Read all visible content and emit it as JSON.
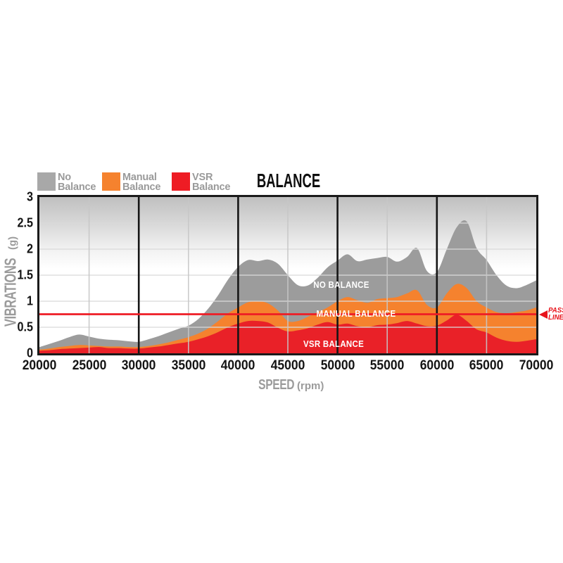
{
  "title": "BALANCE",
  "legend": {
    "items": [
      {
        "line1": "No",
        "line2": "Balance",
        "color": "#a8a8a8"
      },
      {
        "line1": "Manual",
        "line2": "Balance",
        "color": "#f5822e"
      },
      {
        "line1": "VSR",
        "line2": "Balance",
        "color": "#ee1c24"
      }
    ]
  },
  "y_axis": {
    "title": "VIBRATIONS",
    "unit": "(g)",
    "ticks": [
      "3",
      "2.5",
      "2",
      "1.5",
      "1",
      "0.5",
      "0"
    ]
  },
  "x_axis": {
    "title": "SPEED",
    "unit": "(rpm)",
    "ticks": [
      "20000",
      "25000",
      "30000",
      "35000",
      "40000",
      "45000",
      "50000",
      "55000",
      "60000",
      "65000",
      "70000"
    ]
  },
  "pass_line": {
    "value": 0.75,
    "label_line1": "PASS",
    "label_line2": "LINE",
    "color": "#ee1c25"
  },
  "area_labels": {
    "no_balance": "NO BALANCE",
    "manual_balance": "MANUAL BALANCE",
    "vsr_balance": "VSR BALANCE"
  },
  "chart_data": {
    "type": "area",
    "title": "BALANCE",
    "xlabel": "SPEED (rpm)",
    "ylabel": "VIBRATIONS (g)",
    "xlim": [
      20000,
      70000
    ],
    "ylim": [
      0,
      3
    ],
    "x_step": 1000,
    "x": [
      20000,
      21000,
      22000,
      23000,
      24000,
      25000,
      26000,
      27000,
      28000,
      29000,
      30000,
      31000,
      32000,
      33000,
      34000,
      35000,
      36000,
      37000,
      38000,
      39000,
      40000,
      41000,
      42000,
      43000,
      44000,
      45000,
      46000,
      47000,
      48000,
      49000,
      50000,
      51000,
      52000,
      53000,
      54000,
      55000,
      56000,
      57000,
      58000,
      59000,
      60000,
      61000,
      62000,
      63000,
      64000,
      65000,
      66000,
      67000,
      68000,
      69000,
      70000
    ],
    "series": [
      {
        "name": "No Balance",
        "color": "#9c9c9c",
        "values": [
          0.12,
          0.18,
          0.24,
          0.31,
          0.36,
          0.32,
          0.28,
          0.26,
          0.25,
          0.23,
          0.22,
          0.27,
          0.33,
          0.4,
          0.47,
          0.53,
          0.66,
          0.86,
          1.12,
          1.42,
          1.66,
          1.79,
          1.77,
          1.8,
          1.72,
          1.5,
          1.31,
          1.3,
          1.45,
          1.65,
          1.78,
          1.9,
          1.77,
          1.8,
          1.83,
          1.85,
          1.76,
          1.85,
          2.02,
          1.58,
          1.56,
          2.0,
          2.42,
          2.53,
          2.02,
          1.79,
          1.5,
          1.3,
          1.25,
          1.31,
          1.4
        ]
      },
      {
        "name": "Manual Balance",
        "color": "#f5822e",
        "values": [
          0.07,
          0.09,
          0.12,
          0.14,
          0.16,
          0.15,
          0.14,
          0.13,
          0.13,
          0.12,
          0.12,
          0.14,
          0.17,
          0.21,
          0.26,
          0.31,
          0.38,
          0.48,
          0.62,
          0.77,
          0.88,
          0.98,
          1.0,
          0.96,
          0.82,
          0.62,
          0.62,
          0.7,
          0.79,
          0.88,
          1.0,
          1.08,
          1.02,
          0.97,
          1.04,
          1.06,
          1.08,
          1.15,
          1.21,
          0.93,
          0.88,
          1.15,
          1.33,
          1.25,
          1.0,
          0.88,
          0.79,
          0.77,
          0.79,
          0.82,
          0.88
        ]
      },
      {
        "name": "VSR Balance",
        "color": "#e92128",
        "values": [
          0.05,
          0.06,
          0.08,
          0.09,
          0.1,
          0.11,
          0.12,
          0.1,
          0.1,
          0.09,
          0.09,
          0.11,
          0.13,
          0.16,
          0.19,
          0.22,
          0.27,
          0.33,
          0.41,
          0.5,
          0.57,
          0.62,
          0.62,
          0.59,
          0.49,
          0.42,
          0.44,
          0.48,
          0.55,
          0.6,
          0.55,
          0.57,
          0.52,
          0.5,
          0.54,
          0.55,
          0.58,
          0.62,
          0.57,
          0.52,
          0.53,
          0.63,
          0.74,
          0.62,
          0.46,
          0.4,
          0.3,
          0.24,
          0.22,
          0.24,
          0.27
        ]
      }
    ],
    "y_gridlines": [
      0.5,
      1,
      1.5,
      2,
      2.5
    ],
    "minor_x_lines": [
      25000,
      35000,
      45000,
      55000,
      65000
    ],
    "major_x_lines": [
      30000,
      40000,
      50000,
      60000
    ],
    "legend_position": "top-left",
    "grid": true
  }
}
